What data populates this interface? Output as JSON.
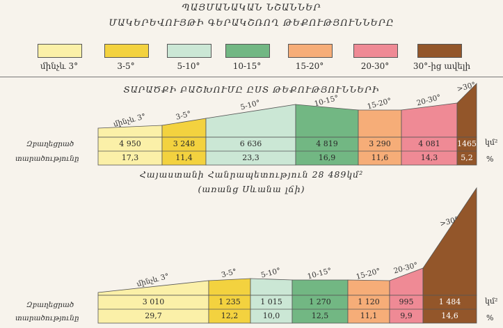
{
  "legend": {
    "title_line1": "ՊԱՅՄԱՆԱԿԱՆ ՆՇԱՆՆԵՐ",
    "title_line2": "ՄԱԿԵՐԵՎՈՒՅԹԻ ԳԵՐԱԿՇՌՈՂ ԹԵՔՈՒԹՅՈՒՆՆԵՐԸ",
    "items": [
      {
        "label": "մինչև 3°",
        "color": "#fbf0a8"
      },
      {
        "label": "3-5°",
        "color": "#f3d23f"
      },
      {
        "label": "5-10°",
        "color": "#cbe7d5"
      },
      {
        "label": "10-15°",
        "color": "#72b783"
      },
      {
        "label": "15-20°",
        "color": "#f6ad78"
      },
      {
        "label": "20-30°",
        "color": "#ef8a95"
      },
      {
        "label": "30°-ից ավելի",
        "color": "#93562a"
      }
    ]
  },
  "section_title": "ՏԱՐԱԾՔԻ ԲԱՇԽՈՒՄԸ ԸՍՏ ԹԵՔՈՒԹՅՈՒՆՆԵՐԻ",
  "row_labels": {
    "area": "Զբաղեցրած",
    "share": "տարածությունը"
  },
  "units": {
    "area": "կմ²",
    "share": "%"
  },
  "armenia": {
    "caption_line1": "Հայաստանի Հանրապետություն  28 489կմ²",
    "caption_line2": "(առանց Սևանա լճի)",
    "categories": [
      "մինչև 3°",
      "3-5°",
      "5-10°",
      "10-15°",
      "15-20°",
      "20-30°",
      ">30°"
    ],
    "areas": [
      "4 950",
      "3 248",
      "6 636",
      "4 819",
      "3 290",
      "4 081",
      "1465"
    ],
    "shares": [
      "17,3",
      "11,4",
      "23,3",
      "16,9",
      "11,6",
      "14,3",
      "5,2"
    ]
  },
  "second": {
    "categories": [
      "մինչև 3°",
      "3-5°",
      "5-10°",
      "10-15°",
      "15-20°",
      "20-30°",
      ">30°"
    ],
    "areas": [
      "3 010",
      "1 235",
      "1 015",
      "1 270",
      "1 120",
      "995",
      "1 484"
    ],
    "shares": [
      "29,7",
      "12,2",
      "10,0",
      "12,5",
      "11,1",
      "9,9",
      "14,6"
    ]
  },
  "chart_data": [
    {
      "type": "table",
      "title": "ՏԱՐԱԾՔԻ ԲԱՇԽՈՒՄԸ ԸՍՏ ԹԵՔՈՒԹՅՈՒՆՆԵՐԻ",
      "categories": [
        "մինչև 3°",
        "3-5°",
        "5-10°",
        "10-15°",
        "15-20°",
        "20-30°",
        ">30°"
      ],
      "series": [
        {
          "name": "կմ²",
          "values": [
            4950,
            3248,
            6636,
            4819,
            3290,
            4081,
            1465
          ]
        },
        {
          "name": "%",
          "values": [
            17.3,
            11.4,
            23.3,
            16.9,
            11.6,
            14.3,
            5.2
          ]
        }
      ]
    },
    {
      "type": "table",
      "categories": [
        "մինչև 3°",
        "3-5°",
        "5-10°",
        "10-15°",
        "15-20°",
        "20-30°",
        ">30°"
      ],
      "series": [
        {
          "name": "կմ²",
          "values": [
            3010,
            1235,
            1015,
            1270,
            1120,
            995,
            1484
          ]
        },
        {
          "name": "%",
          "values": [
            29.7,
            12.2,
            10.0,
            12.5,
            11.1,
            9.9,
            14.6
          ]
        }
      ]
    }
  ]
}
